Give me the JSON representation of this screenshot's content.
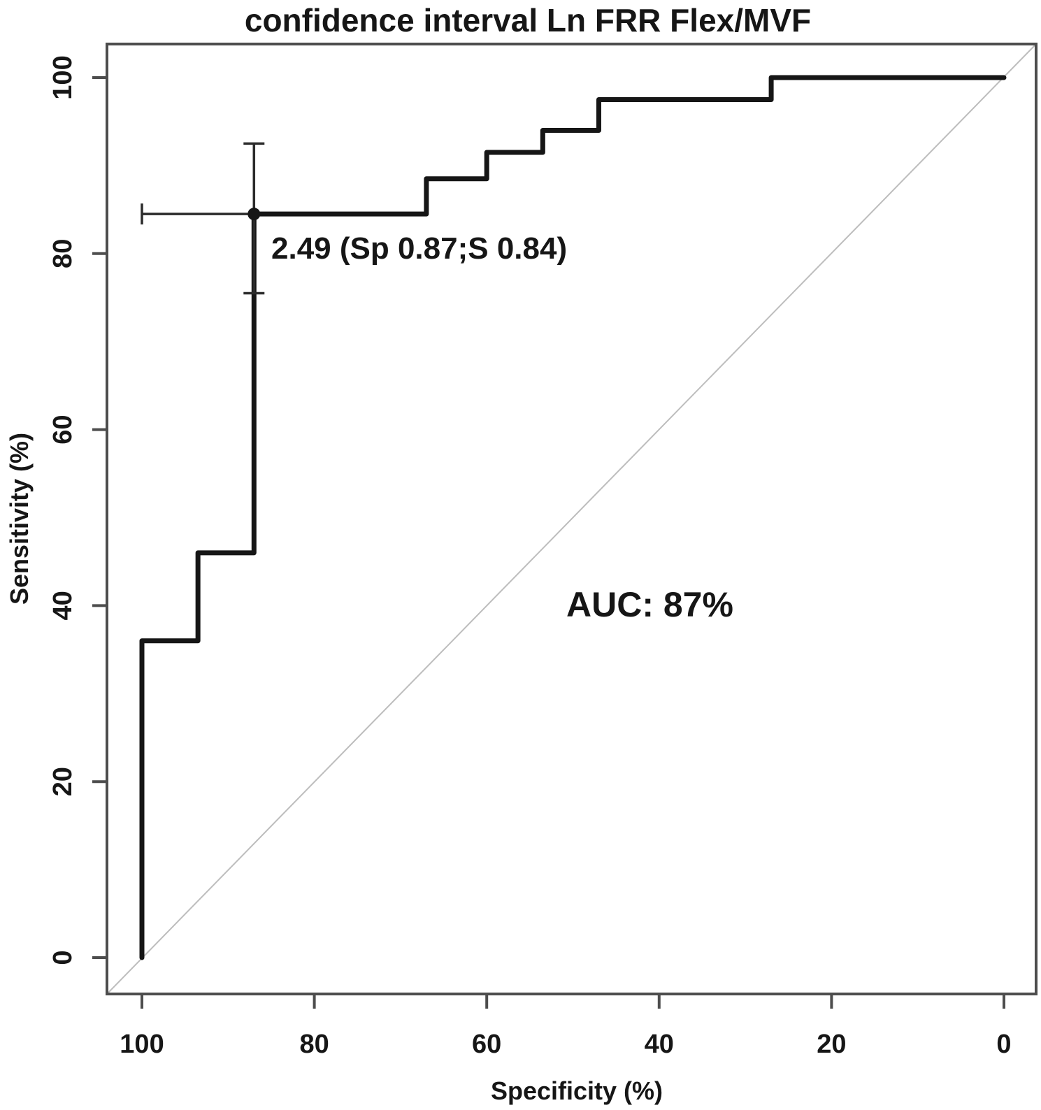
{
  "title": "confidence interval Ln FRR Flex/MVF",
  "chart_data": {
    "type": "line",
    "subtype": "roc-step-curve",
    "title": "confidence interval Ln FRR Flex/MVF",
    "xlabel": "Specificity (%)",
    "ylabel": "Sensitivity (%)",
    "xlim": [
      100,
      0
    ],
    "ylim": [
      0,
      100
    ],
    "x_axis_reversed": true,
    "grid": false,
    "x_ticks": [
      100,
      80,
      60,
      40,
      20,
      0
    ],
    "y_ticks": [
      0,
      20,
      40,
      60,
      80,
      100
    ],
    "series": [
      {
        "name": "ROC step curve",
        "step_points_spec_sens": [
          [
            100,
            0
          ],
          [
            100,
            36
          ],
          [
            93.5,
            36
          ],
          [
            93.5,
            46
          ],
          [
            87,
            46
          ],
          [
            87,
            84.5
          ],
          [
            67,
            84.5
          ],
          [
            67,
            88.5
          ],
          [
            60,
            88.5
          ],
          [
            60,
            91.5
          ],
          [
            53.5,
            91.5
          ],
          [
            53.5,
            94
          ],
          [
            47,
            94
          ],
          [
            47,
            97.5
          ],
          [
            27,
            97.5
          ],
          [
            27,
            100
          ],
          [
            0,
            100
          ]
        ]
      },
      {
        "name": "chance diagonal",
        "points_spec_sens": [
          [
            100,
            0
          ],
          [
            0,
            100
          ]
        ]
      }
    ],
    "best_threshold": {
      "value": 2.49,
      "specificity": 87,
      "sensitivity": 84.5,
      "label": "2.49 (Sp 0.87;S 0.84)",
      "ci_sensitivity_pct": [
        75.5,
        92.5
      ],
      "ci_specificity_pct": [
        100,
        87
      ]
    },
    "auc_pct": 87,
    "auc_label": "AUC: 87%"
  }
}
